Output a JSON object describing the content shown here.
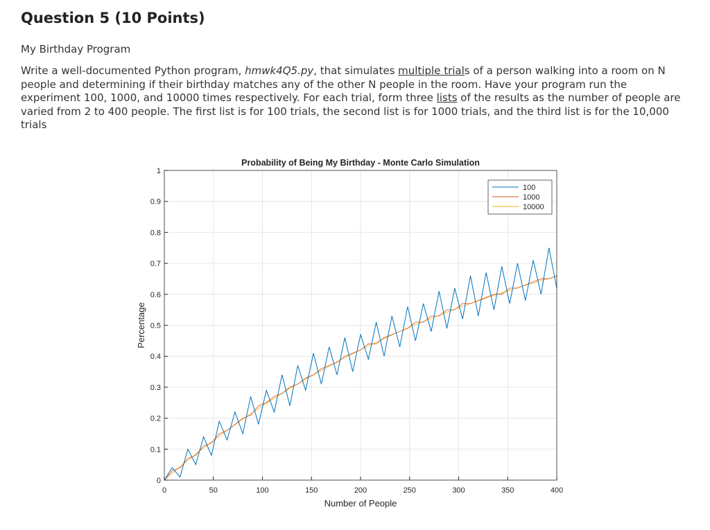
{
  "question": {
    "title": "Question 5 (10 Points)",
    "subtitle": "My Birthday Program",
    "p1": "Write a well-documented Python program, ",
    "filename": "hmwk4Q5.py",
    "p2": ", that simulates ",
    "link1": "multiple trial",
    "p3": "s of a person walking into a room on N people and determining if their birthday matches any of the other N people in the room. Have your program run the experiment 100, 1000, and 10000 times respectively.  For each trial, form three ",
    "link2": "lists",
    "p4": " of the results as the number of people are varied from 2 to 400 people. The first list is for 100 trials, the second list is for 1000 trials, and the third list is for the 10,000 trials"
  },
  "chart_data": {
    "type": "line",
    "title": "Probability of Being My Birthday - Monte Carlo Simulation",
    "xlabel": "Number of People",
    "ylabel": "Percentage",
    "xlim": [
      0,
      400
    ],
    "ylim": [
      0,
      1
    ],
    "grid": true,
    "legend_position": "top-right",
    "xticks": [
      0,
      50,
      100,
      150,
      200,
      250,
      300,
      350,
      400
    ],
    "yticks": [
      0,
      0.1,
      0.2,
      0.3,
      0.4,
      0.5,
      0.6,
      0.7,
      0.8,
      0.9,
      1
    ],
    "x": [
      0,
      8,
      16,
      24,
      32,
      40,
      48,
      56,
      64,
      72,
      80,
      88,
      96,
      104,
      112,
      120,
      128,
      136,
      144,
      152,
      160,
      168,
      176,
      184,
      192,
      200,
      208,
      216,
      224,
      232,
      240,
      248,
      256,
      264,
      272,
      280,
      288,
      296,
      304,
      312,
      320,
      328,
      336,
      344,
      352,
      360,
      368,
      376,
      384,
      392,
      400
    ],
    "series": [
      {
        "name": "100",
        "color": "#0072BD",
        "values": [
          0,
          0.04,
          0.01,
          0.1,
          0.05,
          0.14,
          0.08,
          0.19,
          0.13,
          0.22,
          0.15,
          0.27,
          0.18,
          0.29,
          0.22,
          0.34,
          0.24,
          0.37,
          0.29,
          0.41,
          0.31,
          0.43,
          0.34,
          0.46,
          0.35,
          0.47,
          0.39,
          0.51,
          0.4,
          0.53,
          0.43,
          0.56,
          0.45,
          0.57,
          0.48,
          0.61,
          0.49,
          0.62,
          0.52,
          0.66,
          0.53,
          0.67,
          0.55,
          0.69,
          0.57,
          0.7,
          0.58,
          0.71,
          0.6,
          0.75,
          0.62
        ]
      },
      {
        "name": "1000",
        "color": "#D95319",
        "values": [
          0,
          0.03,
          0.04,
          0.07,
          0.08,
          0.11,
          0.12,
          0.15,
          0.16,
          0.18,
          0.2,
          0.21,
          0.24,
          0.25,
          0.27,
          0.28,
          0.3,
          0.31,
          0.33,
          0.34,
          0.36,
          0.37,
          0.38,
          0.4,
          0.41,
          0.42,
          0.44,
          0.44,
          0.46,
          0.47,
          0.48,
          0.49,
          0.51,
          0.51,
          0.53,
          0.53,
          0.55,
          0.55,
          0.57,
          0.57,
          0.58,
          0.59,
          0.6,
          0.6,
          0.62,
          0.62,
          0.63,
          0.64,
          0.65,
          0.65,
          0.66
        ]
      },
      {
        "name": "10000",
        "color": "#EDB120",
        "values": [
          0,
          0.022,
          0.043,
          0.064,
          0.084,
          0.104,
          0.123,
          0.142,
          0.161,
          0.179,
          0.197,
          0.214,
          0.231,
          0.248,
          0.264,
          0.28,
          0.296,
          0.311,
          0.326,
          0.34,
          0.354,
          0.368,
          0.382,
          0.395,
          0.408,
          0.421,
          0.433,
          0.445,
          0.457,
          0.469,
          0.48,
          0.491,
          0.502,
          0.512,
          0.522,
          0.532,
          0.542,
          0.552,
          0.561,
          0.57,
          0.579,
          0.588,
          0.597,
          0.605,
          0.613,
          0.621,
          0.629,
          0.636,
          0.644,
          0.651,
          0.658
        ]
      }
    ]
  }
}
